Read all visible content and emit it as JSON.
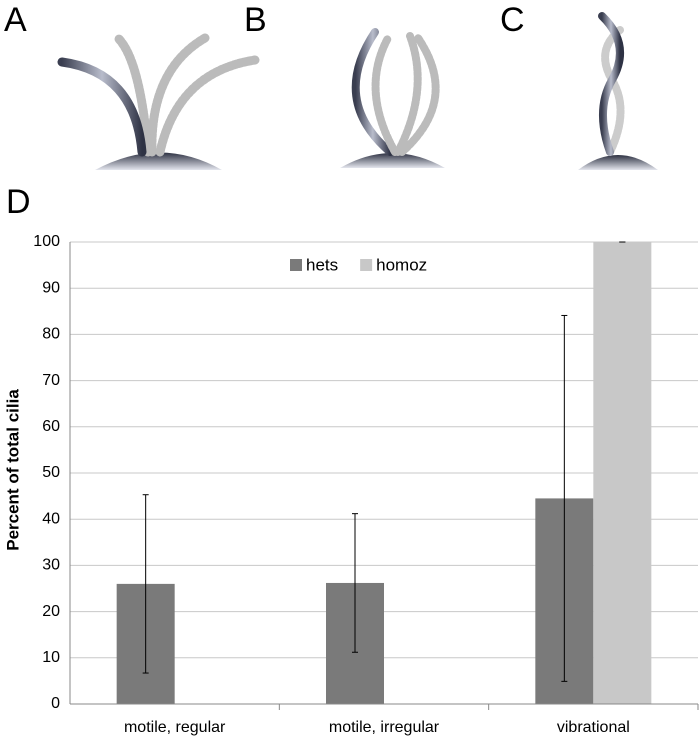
{
  "panels": [
    "A",
    "B",
    "C"
  ],
  "chart_data": {
    "type": "bar",
    "label": "D",
    "ylabel": "Percent of total cilia",
    "categories": [
      "motile, regular",
      "motile, irregular",
      "vibrational"
    ],
    "series": [
      {
        "name": "hets",
        "color": "#7a7a7a",
        "values": [
          26,
          26.2,
          44.5
        ],
        "errors": [
          19.3,
          15,
          39.6
        ]
      },
      {
        "name": "homoz",
        "color": "#c8c8c8",
        "values": [
          0,
          0,
          100
        ],
        "errors": [
          0,
          0,
          0
        ]
      }
    ],
    "ylim": [
      0,
      100
    ],
    "yticks": [
      0,
      10,
      20,
      30,
      40,
      50,
      60,
      70,
      80,
      90,
      100
    ],
    "grid": true,
    "legend": "top"
  }
}
